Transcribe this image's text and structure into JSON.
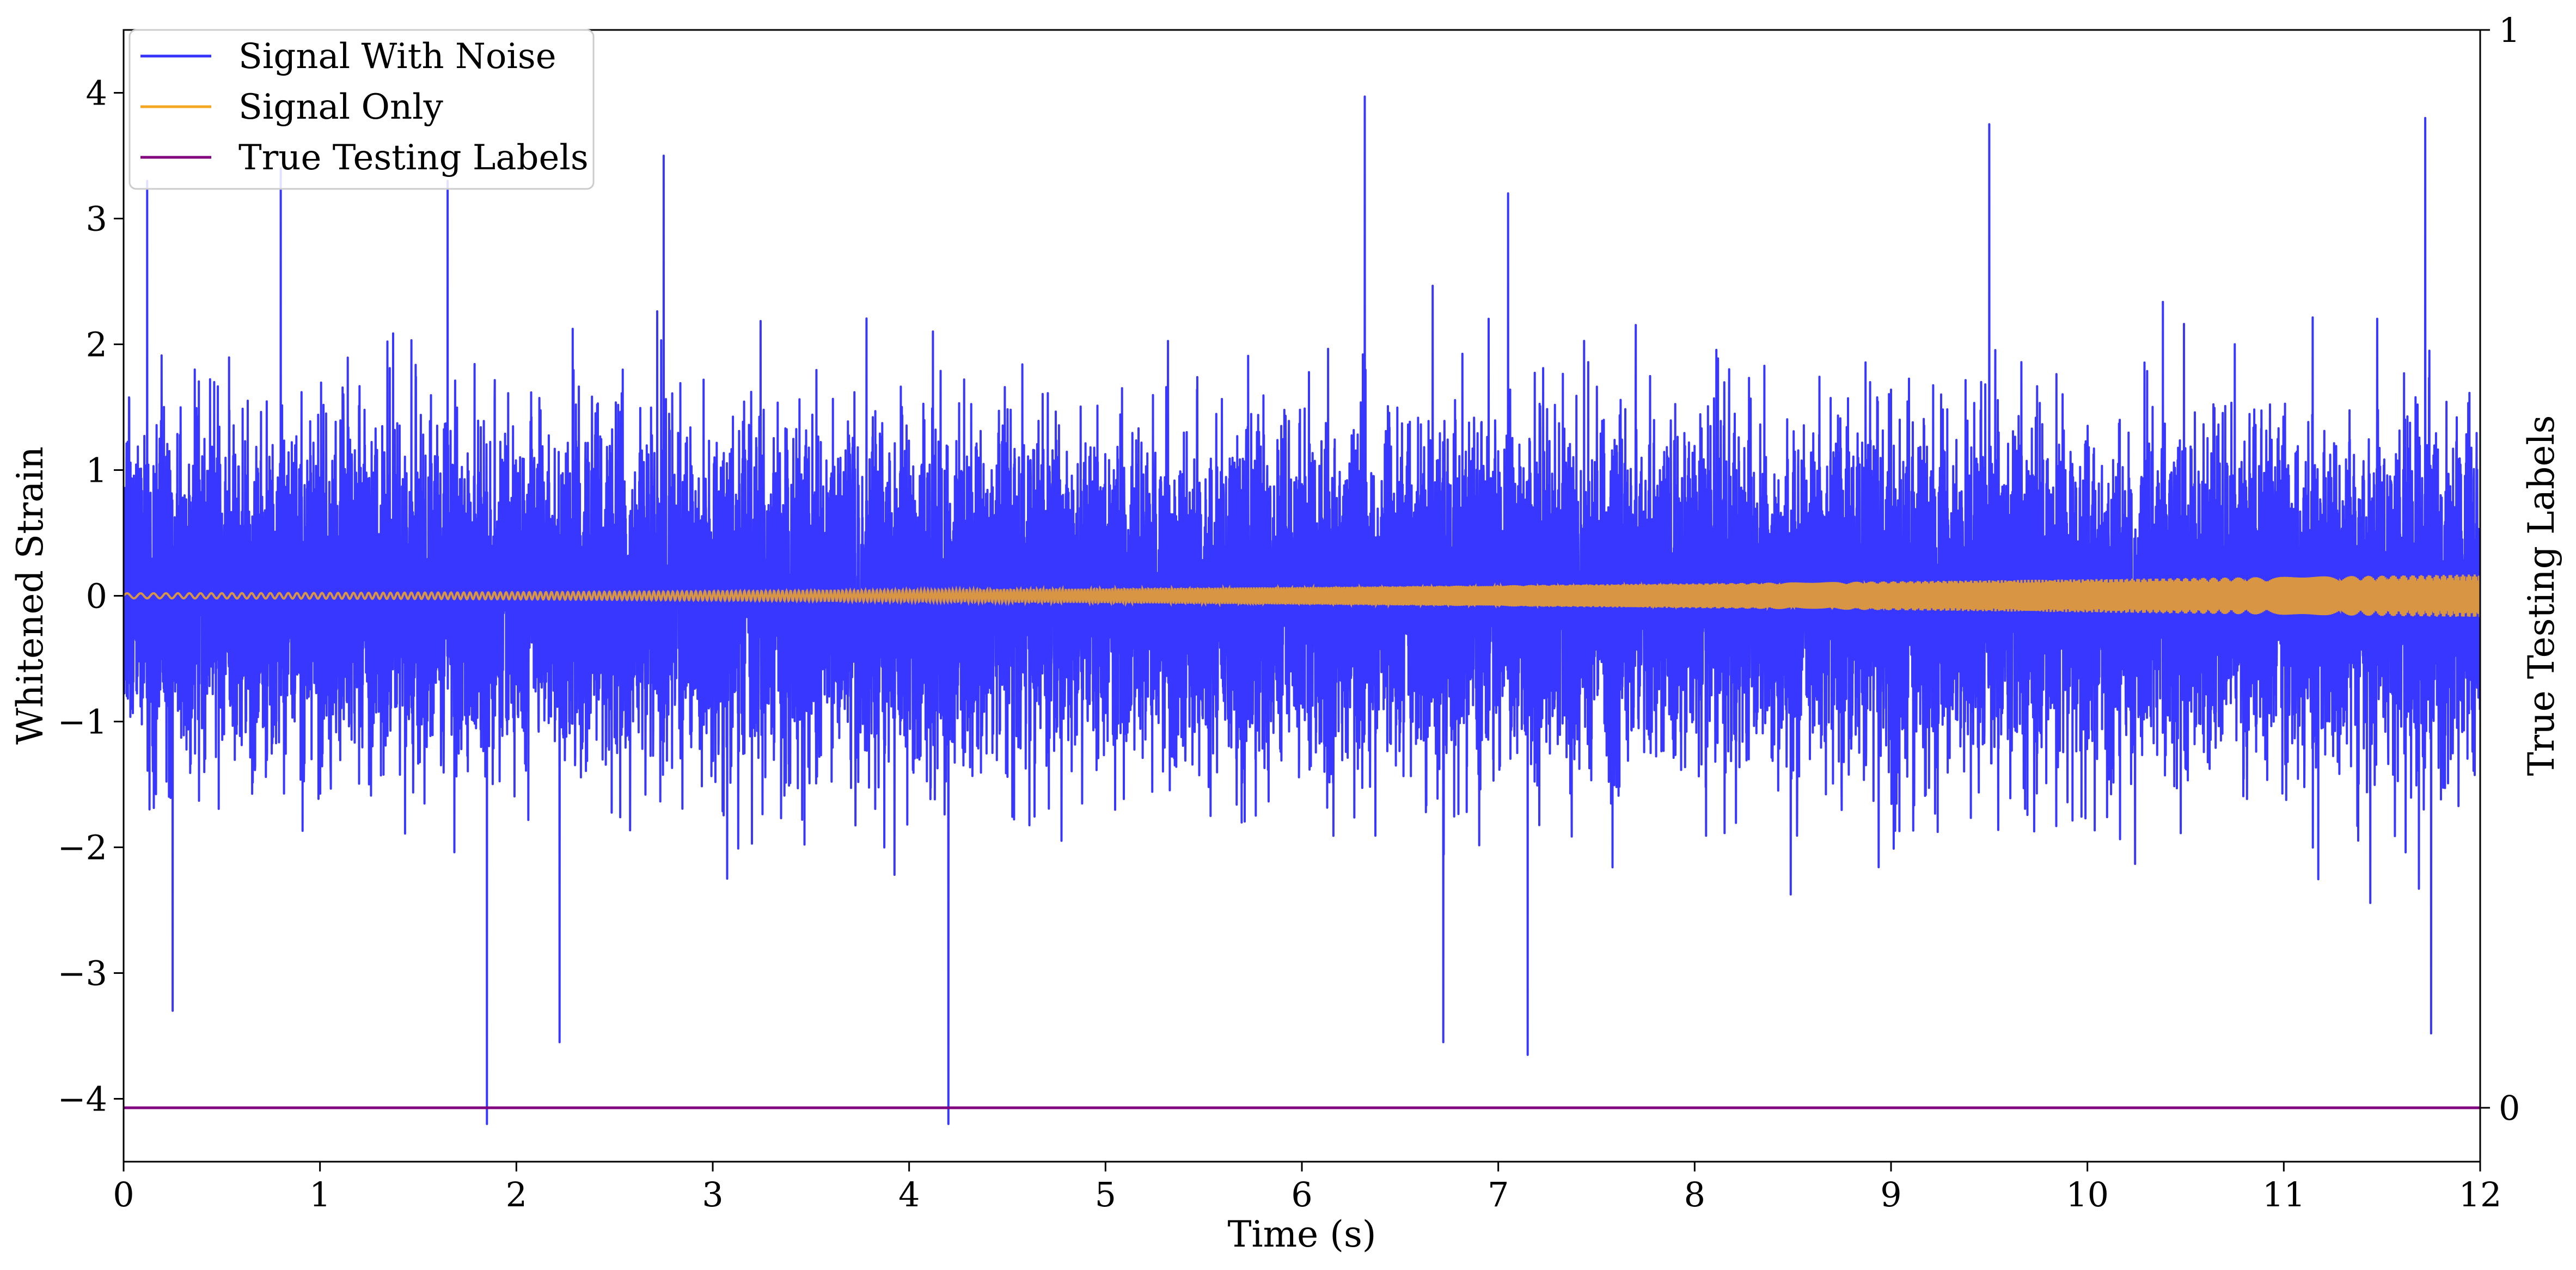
{
  "chart_data": {
    "type": "line",
    "xlabel": "Time (s)",
    "ylabel": "Whitened Strain",
    "y2label": "True Testing Labels",
    "xlim": [
      0,
      12
    ],
    "ylim": [
      -4.5,
      4.5
    ],
    "y2lim": [
      -0.05,
      1.0
    ],
    "x_ticks": [
      0,
      1,
      2,
      3,
      4,
      5,
      6,
      7,
      8,
      9,
      10,
      11,
      12
    ],
    "y_ticks": [
      -4,
      -3,
      -2,
      -1,
      0,
      1,
      2,
      3,
      4
    ],
    "y2_ticks": [
      0,
      1
    ],
    "grid": false,
    "legend_position": "top-left",
    "series": [
      {
        "name": "Signal With Noise",
        "color": "#3333ff",
        "axis": "left",
        "noise_std": 0.65,
        "notable_peaks": [
          {
            "x": 0.12,
            "y": 3.3
          },
          {
            "x": 0.8,
            "y": 3.4
          },
          {
            "x": 1.65,
            "y": 3.3
          },
          {
            "x": 2.75,
            "y": 3.5
          },
          {
            "x": 6.32,
            "y": 3.97
          },
          {
            "x": 7.05,
            "y": 3.2
          },
          {
            "x": 9.5,
            "y": 3.75
          },
          {
            "x": 11.72,
            "y": 3.8
          },
          {
            "x": 1.85,
            "y": -4.2
          },
          {
            "x": 4.2,
            "y": -4.2
          },
          {
            "x": 7.15,
            "y": -3.65
          },
          {
            "x": 6.72,
            "y": -3.55
          },
          {
            "x": 11.75,
            "y": -3.48
          },
          {
            "x": 0.25,
            "y": -3.3
          },
          {
            "x": 2.22,
            "y": -3.55
          }
        ]
      },
      {
        "name": "Signal Only",
        "color": "#f5a623",
        "axis": "left",
        "chirp": {
          "t_start": 0,
          "t_end": 12,
          "amplitude_start": 0.02,
          "amplitude_end": 0.17
        }
      },
      {
        "name": "True Testing Labels",
        "color": "#800080",
        "axis": "right",
        "x": [
          0,
          12
        ],
        "y": [
          0,
          0
        ]
      }
    ]
  }
}
